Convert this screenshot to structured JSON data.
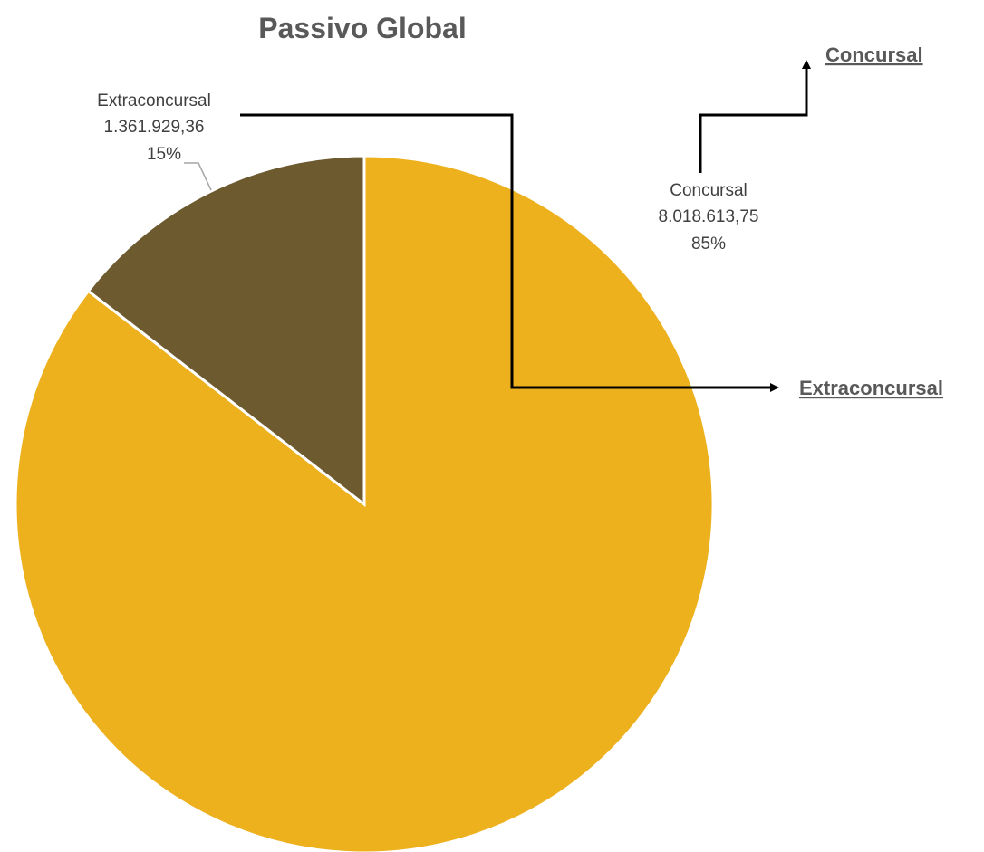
{
  "chart_data": {
    "type": "pie",
    "title": "Passivo Global",
    "slices": [
      {
        "name": "Concursal",
        "value": 8018613.75,
        "value_label": "8.018.613,75",
        "percent_label": "85%",
        "color": "#EDB11E"
      },
      {
        "name": "Extraconcursal",
        "value": 1361929.36,
        "value_label": "1.361.929,36",
        "percent_label": "15%",
        "color": "#6D5A2E"
      }
    ],
    "annotations": [
      "Concursal",
      "Extraconcursal"
    ]
  }
}
